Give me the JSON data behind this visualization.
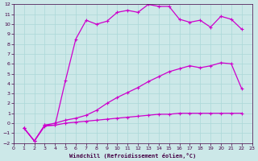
{
  "xlabel": "Windchill (Refroidissement éolien,°C)",
  "background_color": "#cce8e8",
  "grid_color": "#aad8d8",
  "line_color": "#cc00cc",
  "spine_color": "#440044",
  "tick_color": "#440044",
  "xlim": [
    0,
    23
  ],
  "ylim": [
    -2,
    12
  ],
  "xticks": [
    0,
    1,
    2,
    3,
    4,
    5,
    6,
    7,
    8,
    9,
    10,
    11,
    12,
    13,
    14,
    15,
    16,
    17,
    18,
    19,
    20,
    21,
    22,
    23
  ],
  "yticks": [
    -2,
    -1,
    0,
    1,
    2,
    3,
    4,
    5,
    6,
    7,
    8,
    9,
    10,
    11,
    12
  ],
  "series": [
    {
      "x": [
        1,
        2,
        3,
        4,
        5,
        6,
        7,
        8,
        9,
        10,
        11,
        12,
        13,
        14,
        15,
        16,
        17,
        18,
        19,
        20,
        21,
        22
      ],
      "y": [
        -0.5,
        -1.8,
        -0.2,
        -0.2,
        4.3,
        8.5,
        10.4,
        10.0,
        10.3,
        11.2,
        11.4,
        11.2,
        12.0,
        11.8,
        11.8,
        10.5,
        10.2,
        10.4,
        9.7,
        10.8,
        10.5,
        9.5
      ]
    },
    {
      "x": [
        1,
        2,
        3,
        4,
        5,
        6,
        7,
        8,
        9,
        10,
        11,
        12,
        13,
        14,
        15,
        16,
        17,
        18,
        19,
        20,
        21,
        22
      ],
      "y": [
        -0.5,
        -1.8,
        -0.2,
        0.0,
        0.3,
        0.5,
        0.8,
        1.3,
        2.0,
        2.6,
        3.1,
        3.6,
        4.2,
        4.7,
        5.2,
        5.5,
        5.8,
        5.6,
        5.8,
        6.1,
        6.0,
        3.5
      ]
    },
    {
      "x": [
        1,
        2,
        3,
        4,
        5,
        6,
        7,
        8,
        9,
        10,
        11,
        12,
        13,
        14,
        15,
        16,
        17,
        18,
        19,
        20,
        21,
        22
      ],
      "y": [
        -0.5,
        -1.8,
        -0.3,
        -0.2,
        0.0,
        0.1,
        0.2,
        0.3,
        0.4,
        0.5,
        0.6,
        0.7,
        0.8,
        0.9,
        0.9,
        1.0,
        1.0,
        1.0,
        1.0,
        1.0,
        1.0,
        1.0
      ]
    }
  ]
}
